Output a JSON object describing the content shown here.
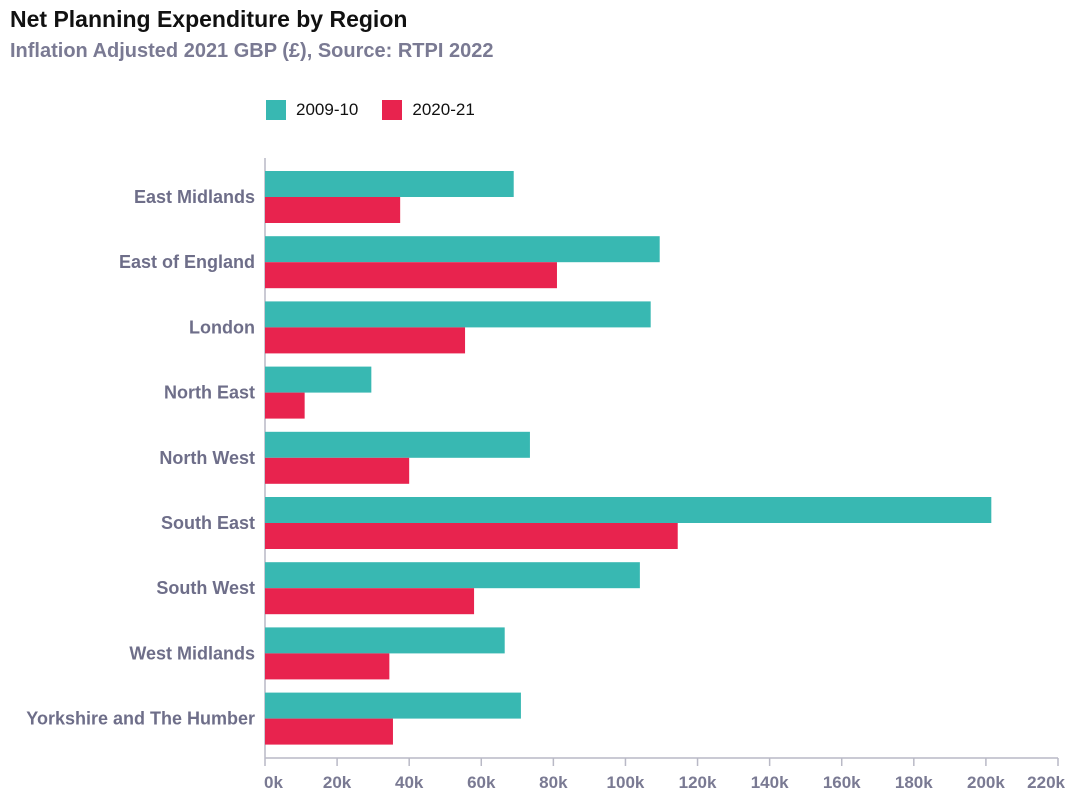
{
  "chart_data": {
    "type": "bar",
    "orientation": "horizontal",
    "title": "Net Planning Expenditure by Region",
    "subtitle": "Inflation Adjusted 2021 GBP (£), Source: RTPI 2022",
    "categories": [
      "East Midlands",
      "East of England",
      "London",
      "North East",
      "North West",
      "South East",
      "South West",
      "West Midlands",
      "Yorkshire and The Humber"
    ],
    "series": [
      {
        "name": "2009-10",
        "color": "#38b8b2",
        "values": [
          69000,
          109500,
          107000,
          29500,
          73500,
          201500,
          104000,
          66500,
          71000
        ]
      },
      {
        "name": "2020-21",
        "color": "#e8234e",
        "values": [
          37500,
          81000,
          55500,
          11000,
          40000,
          114500,
          58000,
          34500,
          35500
        ]
      }
    ],
    "xlim": [
      0,
      220000
    ],
    "x_ticks": [
      "0k",
      "20k",
      "40k",
      "60k",
      "80k",
      "100k",
      "120k",
      "140k",
      "160k",
      "180k",
      "200k",
      "220k"
    ],
    "legend_position": "top",
    "grid": false
  }
}
